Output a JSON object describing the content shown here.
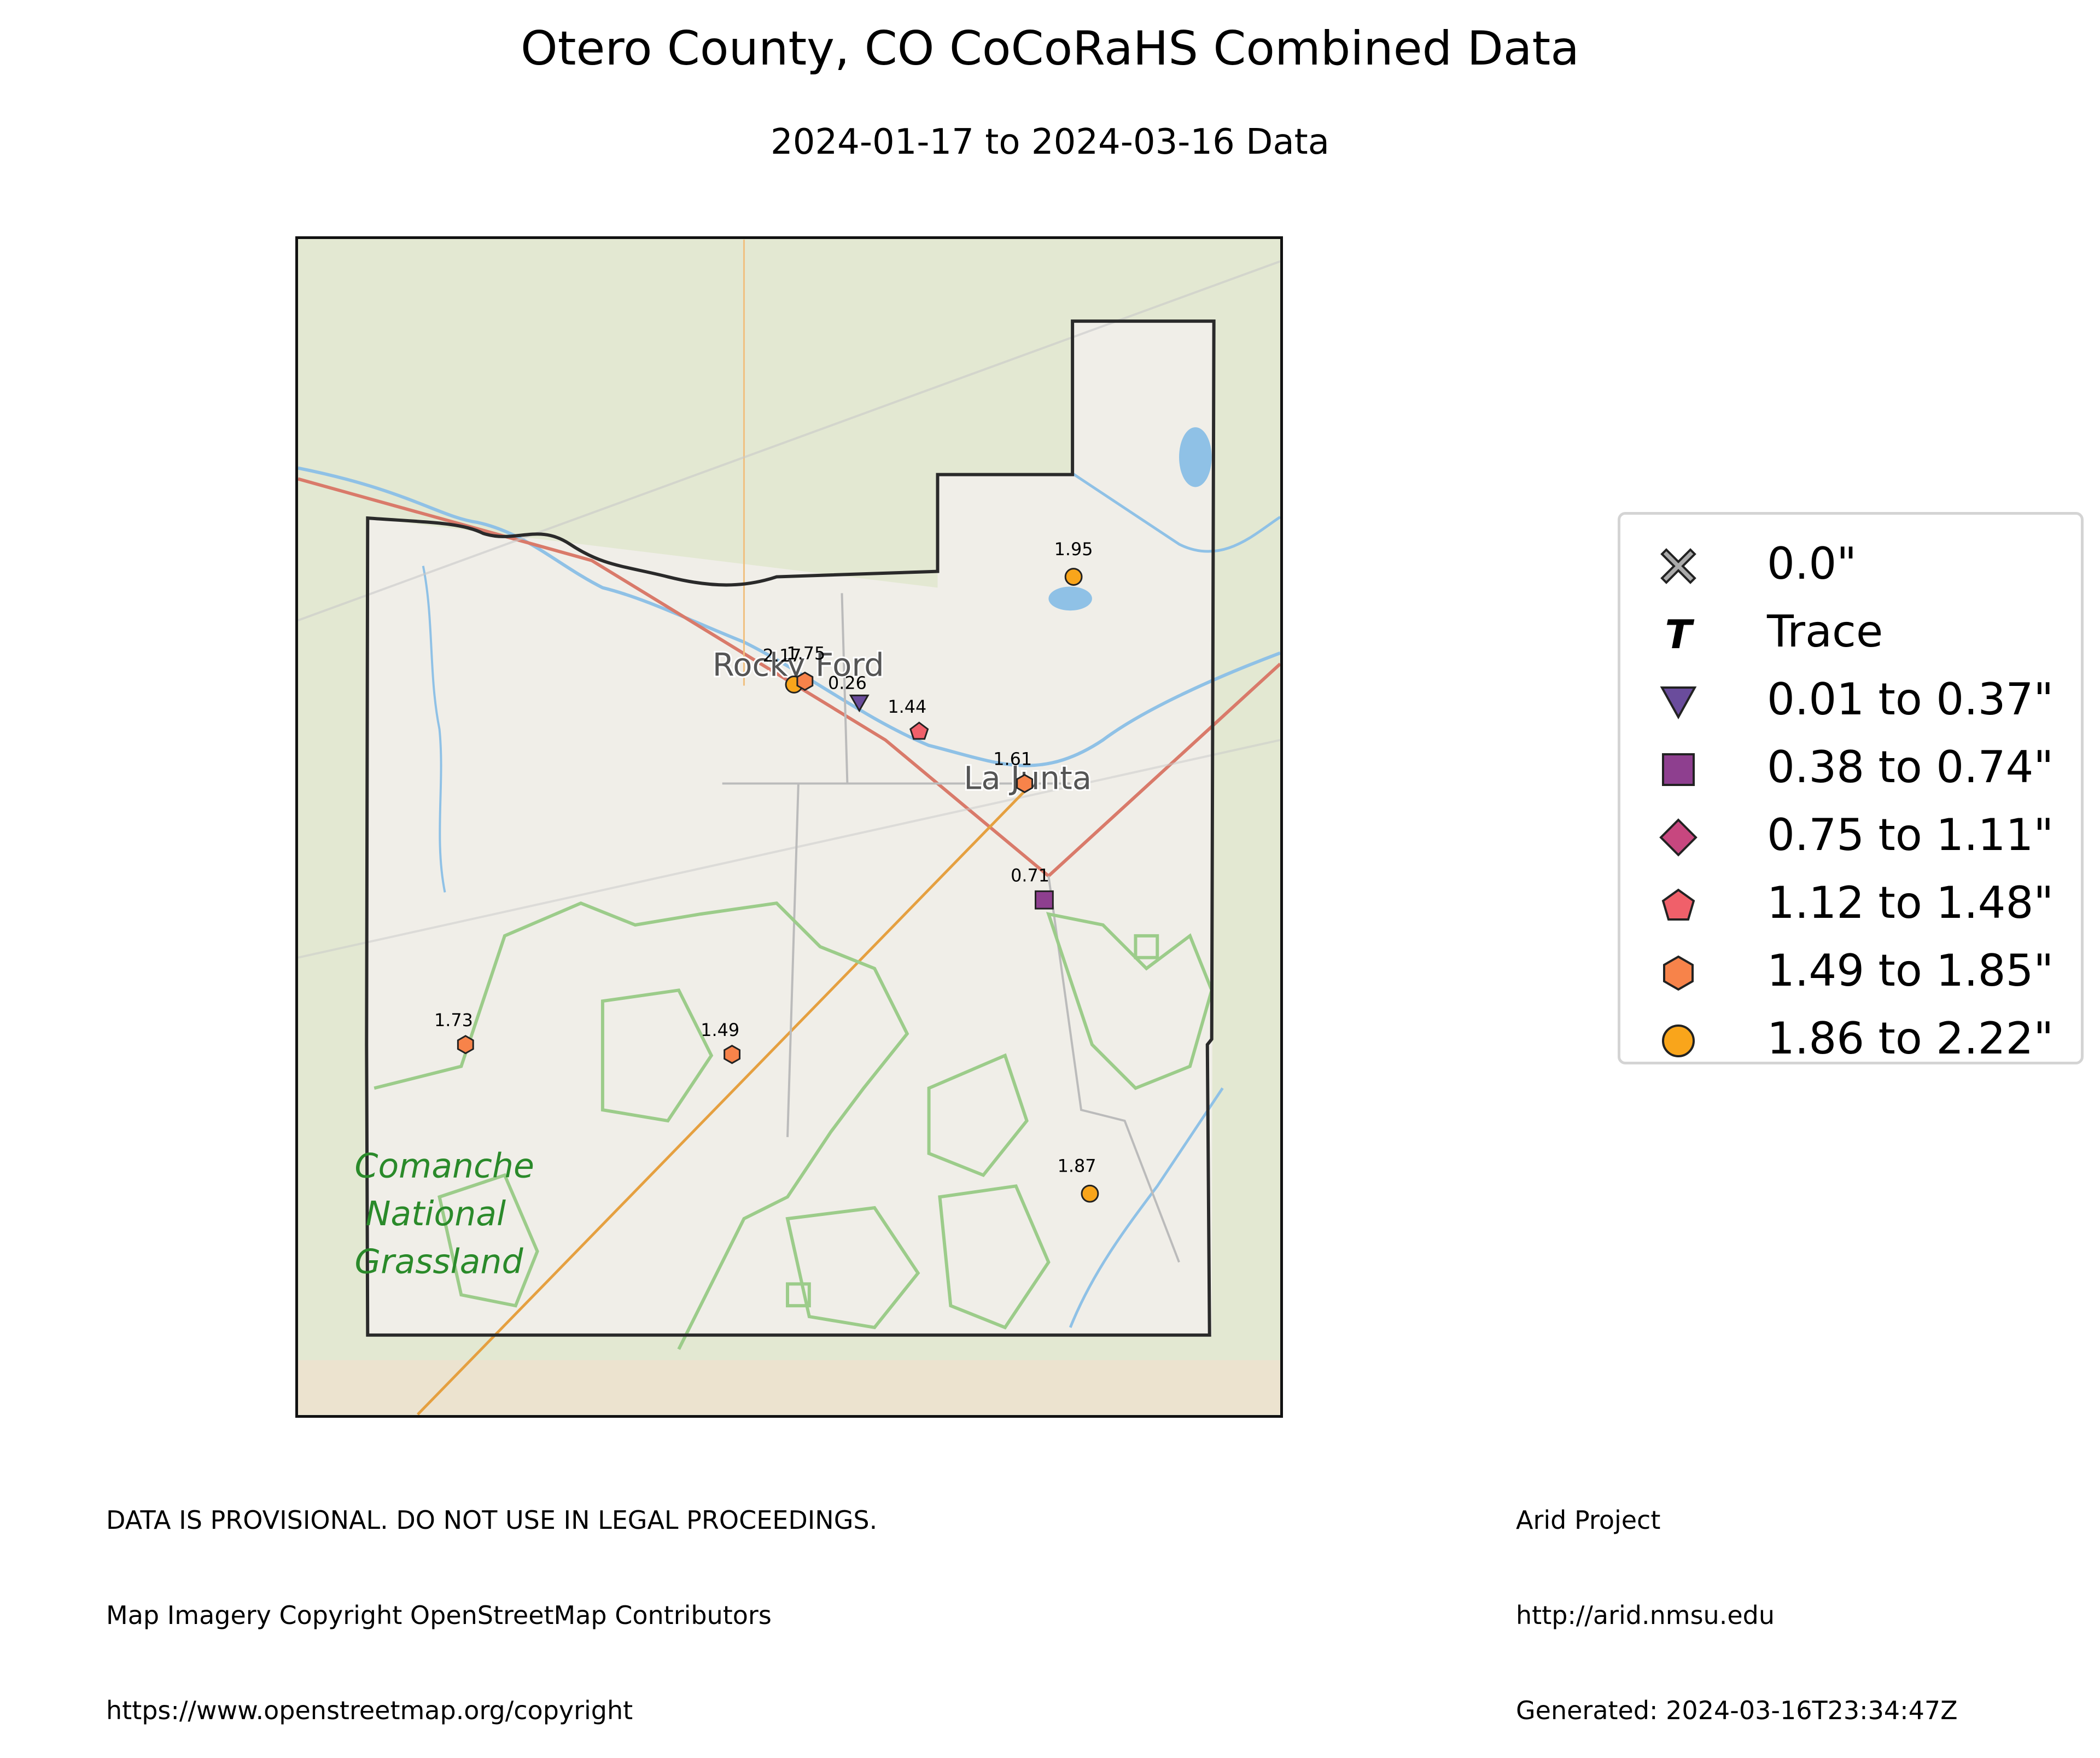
{
  "title": "Otero County, CO CoCoRaHS Combined Data",
  "subtitle": "2024-01-17 to 2024-03-16 Data",
  "map": {
    "places": [
      "Rocky Ford",
      "La Junta"
    ],
    "area_label": [
      "Comanche",
      "National",
      "Grassland"
    ],
    "stations": [
      {
        "value": "1.95",
        "category": "1.86 to 2.22\""
      },
      {
        "value": "2.17",
        "category": "1.86 to 2.22\""
      },
      {
        "value": "1.75",
        "category": "1.49 to 1.85\""
      },
      {
        "value": "0.26",
        "category": "0.01 to 0.37\""
      },
      {
        "value": "1.44",
        "category": "1.12 to 1.48\""
      },
      {
        "value": "1.61",
        "category": "1.49 to 1.85\""
      },
      {
        "value": "0.71",
        "category": "0.38 to 0.74\""
      },
      {
        "value": "1.73",
        "category": "1.49 to 1.85\""
      },
      {
        "value": "1.49",
        "category": "1.49 to 1.85\""
      },
      {
        "value": "1.87",
        "category": "1.86 to 2.22\""
      }
    ]
  },
  "legend": {
    "items": [
      {
        "label": "0.0\"",
        "marker": "x-icon",
        "color": "#aaaaaa"
      },
      {
        "label": "Trace",
        "marker": "t-icon",
        "color": "#000000"
      },
      {
        "label": "0.01 to 0.37\"",
        "marker": "triangle-down-icon",
        "color": "#6a4c9c"
      },
      {
        "label": "0.38 to 0.74\"",
        "marker": "square-icon",
        "color": "#8e3f8f"
      },
      {
        "label": "0.75 to 1.11\"",
        "marker": "diamond-icon",
        "color": "#c7477f"
      },
      {
        "label": "1.12 to 1.48\"",
        "marker": "pentagon-icon",
        "color": "#f0606a"
      },
      {
        "label": "1.49 to 1.85\"",
        "marker": "hexagon-icon",
        "color": "#f7834a"
      },
      {
        "label": "1.86 to 2.22\"",
        "marker": "circle-icon",
        "color": "#f9a51b"
      }
    ]
  },
  "footer": {
    "left": [
      "DATA IS PROVISIONAL. DO NOT USE IN LEGAL PROCEEDINGS.",
      "Map Imagery Copyright OpenStreetMap Contributors",
      "https://www.openstreetmap.org/copyright"
    ],
    "right": [
      "Arid Project",
      "http://arid.nmsu.edu",
      "Generated: 2024-03-16T23:34:47Z"
    ]
  }
}
